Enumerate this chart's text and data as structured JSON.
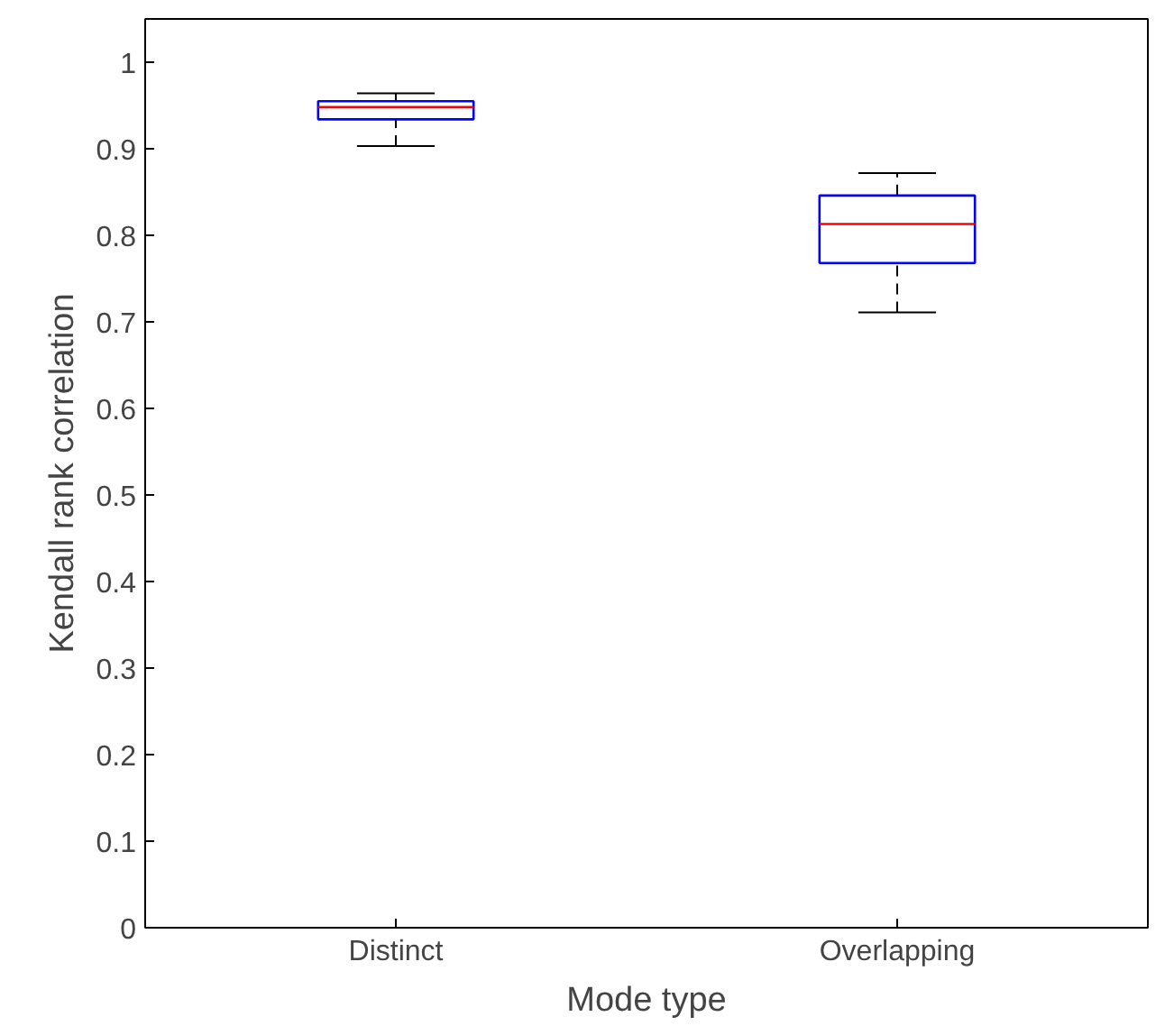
{
  "chart_data": {
    "type": "box",
    "xlabel": "Mode type",
    "ylabel": "Kendall rank correlation",
    "categories": [
      "Distinct",
      "Overlapping"
    ],
    "boxes": [
      {
        "low": 0.903,
        "q1": 0.934,
        "median": 0.948,
        "q3": 0.955,
        "high": 0.964
      },
      {
        "low": 0.711,
        "q1": 0.768,
        "median": 0.813,
        "q3": 0.846,
        "high": 0.872
      }
    ],
    "ylim": [
      0,
      1.05
    ],
    "yticks": [
      0,
      0.1,
      0.2,
      0.3,
      0.4,
      0.5,
      0.6,
      0.7,
      0.8,
      0.9,
      1
    ],
    "grid": false
  }
}
